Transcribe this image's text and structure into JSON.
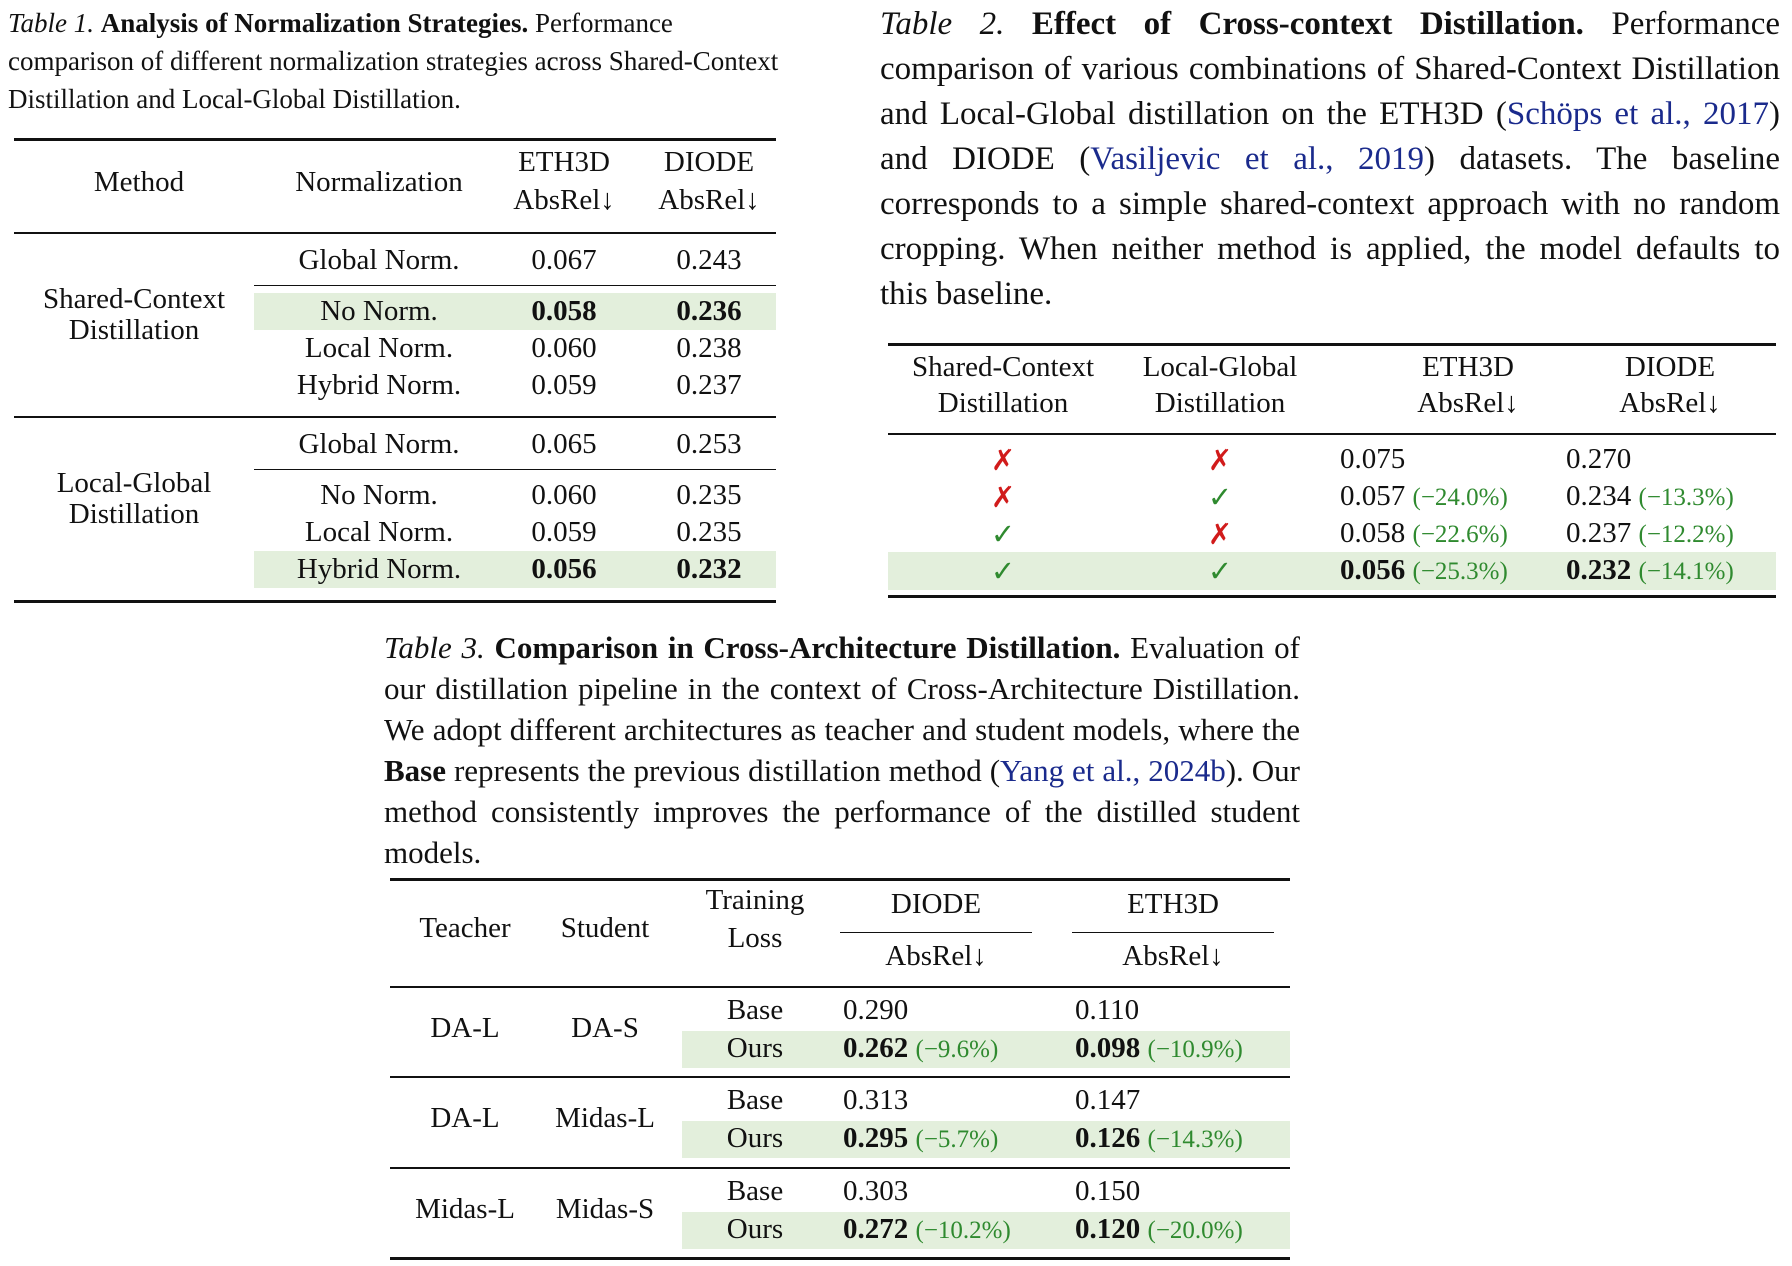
{
  "table1": {
    "caption": {
      "label": "Table 1.",
      "title": "Analysis of Normalization Strategies.",
      "text": "Performance comparison of different normalization strategies across Shared-Context Distillation and Local-Global Distillation."
    },
    "headers": {
      "method": "Method",
      "normalization": "Normalization",
      "eth3d": "ETH3D",
      "diode": "DIODE",
      "metric": "AbsRel↓"
    },
    "groups": [
      {
        "method": "Shared-Context Distillation",
        "rows": [
          {
            "norm": "Global Norm.",
            "eth3d": "0.067",
            "diode": "0.243",
            "best": false
          },
          {
            "norm": "No Norm.",
            "eth3d": "0.058",
            "diode": "0.236",
            "best": true
          },
          {
            "norm": "Local Norm.",
            "eth3d": "0.060",
            "diode": "0.238",
            "best": false
          },
          {
            "norm": "Hybrid Norm.",
            "eth3d": "0.059",
            "diode": "0.237",
            "best": false
          }
        ]
      },
      {
        "method": "Local-Global Distillation",
        "rows": [
          {
            "norm": "Global Norm.",
            "eth3d": "0.065",
            "diode": "0.253",
            "best": false
          },
          {
            "norm": "No Norm.",
            "eth3d": "0.060",
            "diode": "0.235",
            "best": false
          },
          {
            "norm": "Local Norm.",
            "eth3d": "0.059",
            "diode": "0.235",
            "best": false
          },
          {
            "norm": "Hybrid Norm.",
            "eth3d": "0.056",
            "diode": "0.232",
            "best": true
          }
        ]
      }
    ]
  },
  "table2": {
    "caption": {
      "label": "Table 2.",
      "title": "Effect of Cross-context Distillation.",
      "text_a": "Performance comparison of various combinations of Shared-Context Distillation and Local-Global distillation on the ETH3D (",
      "cite1": "Schöps et al., 2017",
      "text_b": ") and DIODE (",
      "cite2": "Vasiljevic et al., 2019",
      "text_c": ") datasets. The baseline corresponds to a simple shared-context approach with no random cropping. When neither method is applied, the model defaults to this baseline."
    },
    "headers": {
      "col1_line1": "Shared-Context",
      "col1_line2": "Distillation",
      "col2_line1": "Local-Global",
      "col2_line2": "Distillation",
      "eth3d": "ETH3D",
      "diode": "DIODE",
      "metric": "AbsRel↓"
    },
    "rows": [
      {
        "shared": "✗",
        "local": "✗",
        "eth3d": "0.075",
        "eth3d_delta": "",
        "diode": "0.270",
        "diode_delta": "",
        "best": false
      },
      {
        "shared": "✗",
        "local": "✓",
        "eth3d": "0.057",
        "eth3d_delta": "(−24.0%)",
        "diode": "0.234",
        "diode_delta": "(−13.3%)",
        "best": false
      },
      {
        "shared": "✓",
        "local": "✗",
        "eth3d": "0.058",
        "eth3d_delta": "(−22.6%)",
        "diode": "0.237",
        "diode_delta": "(−12.2%)",
        "best": false
      },
      {
        "shared": "✓",
        "local": "✓",
        "eth3d": "0.056",
        "eth3d_delta": "(−25.3%)",
        "diode": "0.232",
        "diode_delta": "(−14.1%)",
        "best": true
      }
    ]
  },
  "table3": {
    "caption": {
      "label": "Table 3.",
      "title": "Comparison in Cross-Architecture Distillation.",
      "text_a": "Evaluation of our distillation pipeline in the context of Cross-Architecture Distillation. We adopt different architectures as teacher and student models, where the",
      "base_word": "Base",
      "text_b": "represents the previous distillation method (",
      "cite": "Yang et al., 2024b",
      "text_c": "). Our method consistently improves the performance of the distilled student models."
    },
    "headers": {
      "teacher": "Teacher",
      "student": "Student",
      "loss_line1": "Training",
      "loss_line2": "Loss",
      "diode": "DIODE",
      "eth3d": "ETH3D",
      "metric": "AbsRel↓"
    },
    "groups": [
      {
        "teacher": "DA-L",
        "student": "DA-S",
        "rows": [
          {
            "loss": "Base",
            "diode": "0.290",
            "diode_delta": "",
            "eth3d": "0.110",
            "eth3d_delta": "",
            "ours": false
          },
          {
            "loss": "Ours",
            "diode": "0.262",
            "diode_delta": "(−9.6%)",
            "eth3d": "0.098",
            "eth3d_delta": "(−10.9%)",
            "ours": true
          }
        ]
      },
      {
        "teacher": "DA-L",
        "student": "Midas-L",
        "rows": [
          {
            "loss": "Base",
            "diode": "0.313",
            "diode_delta": "",
            "eth3d": "0.147",
            "eth3d_delta": "",
            "ours": false
          },
          {
            "loss": "Ours",
            "diode": "0.295",
            "diode_delta": "(−5.7%)",
            "eth3d": "0.126",
            "eth3d_delta": "(−14.3%)",
            "ours": true
          }
        ]
      },
      {
        "teacher": "Midas-L",
        "student": "Midas-S",
        "rows": [
          {
            "loss": "Base",
            "diode": "0.303",
            "diode_delta": "",
            "eth3d": "0.150",
            "eth3d_delta": "",
            "ours": false
          },
          {
            "loss": "Ours",
            "diode": "0.272",
            "diode_delta": "(−10.2%)",
            "eth3d": "0.120",
            "eth3d_delta": "(−20.0%)",
            "ours": true
          }
        ]
      }
    ]
  }
}
